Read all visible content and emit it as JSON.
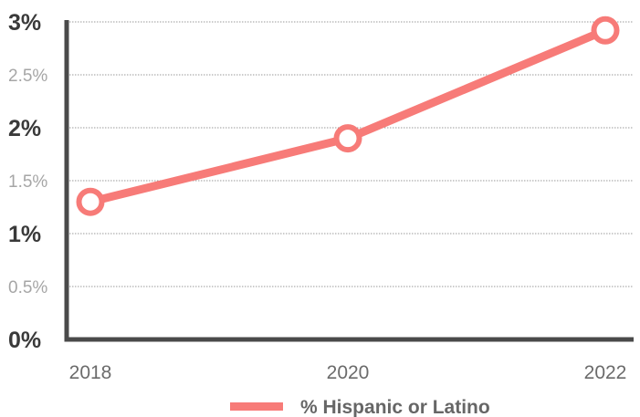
{
  "chart_data": {
    "type": "line",
    "x": [
      "2018",
      "2020",
      "2022"
    ],
    "series": [
      {
        "name": "% Hispanic or Latino",
        "values": [
          1.3,
          1.9,
          2.92
        ],
        "color": "#f77b78"
      }
    ],
    "yticks": [
      {
        "value": 0,
        "label": "0%",
        "major": true
      },
      {
        "value": 0.5,
        "label": "0.5%",
        "major": false
      },
      {
        "value": 1,
        "label": "1%",
        "major": true
      },
      {
        "value": 1.5,
        "label": "1.5%",
        "major": false
      },
      {
        "value": 2,
        "label": "2%",
        "major": true
      },
      {
        "value": 2.5,
        "label": "2.5%",
        "major": false
      },
      {
        "value": 3,
        "label": "3%",
        "major": true
      }
    ],
    "ylim": [
      0,
      3
    ],
    "grid": true,
    "legend_position": "bottom-center",
    "title": "",
    "xlabel": "",
    "ylabel": ""
  }
}
